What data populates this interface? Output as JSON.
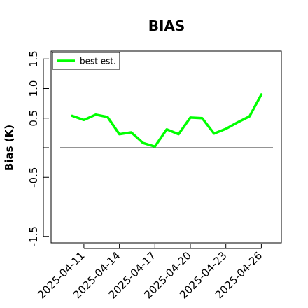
{
  "chart_data": {
    "type": "line",
    "title": "BIAS",
    "ylabel": "Bias (K)",
    "xlabel": "",
    "ylim": [
      -1.6,
      1.6
    ],
    "y_ticks": [
      -1.5,
      -1.0,
      -0.5,
      0.0,
      0.5,
      1.0,
      1.5
    ],
    "y_tick_labels": [
      "-1.5",
      "",
      "-0.5",
      "",
      "0.5",
      "1.0",
      "1.5"
    ],
    "x_tick_labels": [
      "2025-04-11",
      "2025-04-14",
      "2025-04-17",
      "2025-04-20",
      "2025-04-23",
      "2025-04-26"
    ],
    "reference_line": 0.0,
    "legend": {
      "position": "top-left",
      "entries": [
        "best est."
      ]
    },
    "series": [
      {
        "name": "best est.",
        "color": "#00ff00",
        "x": [
          "2025-04-10",
          "2025-04-11",
          "2025-04-12",
          "2025-04-13",
          "2025-04-14",
          "2025-04-15",
          "2025-04-16",
          "2025-04-17",
          "2025-04-18",
          "2025-04-19",
          "2025-04-20",
          "2025-04-21",
          "2025-04-22",
          "2025-04-23",
          "2025-04-24",
          "2025-04-25",
          "2025-04-26"
        ],
        "values": [
          0.54,
          0.47,
          0.56,
          0.52,
          0.23,
          0.26,
          0.08,
          0.02,
          0.31,
          0.23,
          0.51,
          0.5,
          0.24,
          0.32,
          0.43,
          0.53,
          0.9
        ]
      }
    ],
    "colors": {
      "series": "#00ff00",
      "reference_line": "#555555",
      "axis": "#000000"
    }
  }
}
